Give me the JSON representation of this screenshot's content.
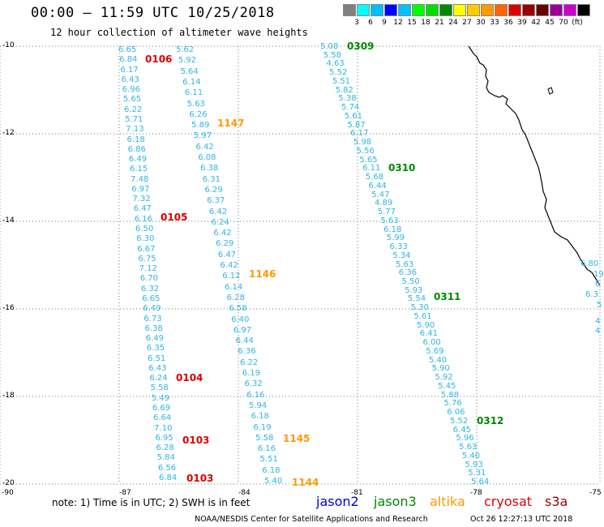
{
  "header": {
    "title": "00:00 – 11:59 UTC 10/25/2018",
    "subtitle": "12 hour collection of altimeter wave heights"
  },
  "colorbar": {
    "colors": [
      "#808080",
      "#00ffff",
      "#00bfff",
      "#0000ff",
      "#00c0ff",
      "#00ff00",
      "#00dd00",
      "#008800",
      "#ffff00",
      "#ffcc00",
      "#ff9900",
      "#ff6600",
      "#dd0000",
      "#990000",
      "#660000",
      "#990099",
      "#cc00cc",
      "#000000"
    ],
    "labels": [
      "3",
      "6",
      "9",
      "12",
      "15",
      "18",
      "21",
      "24",
      "27",
      "30",
      "33",
      "36",
      "39",
      "42",
      "45",
      "70",
      "(ft)"
    ]
  },
  "axes": {
    "y_labels": [
      "-10",
      "-12",
      "-14",
      "-16",
      "-18",
      "-20"
    ],
    "x_labels": [
      "-90",
      "-87",
      "-84",
      "-81",
      "-78",
      "-75"
    ]
  },
  "tracks": {
    "track_a": [
      "6.65",
      "6.84",
      "6.17",
      "6.43",
      "6.96",
      "5.65",
      "6.22",
      "5.71",
      "7.13",
      "6.18",
      "6.86",
      "6.49",
      "6.15",
      "7.48",
      "6.97",
      "7.32",
      "6.47",
      "6.16",
      "6.50",
      "6.30",
      "6.67",
      "6.75",
      "7.12",
      "6.70",
      "6.32",
      "6.65",
      "6.49",
      "6.73",
      "6.38",
      "6.49",
      "6.35",
      "6.51",
      "6.43",
      "6.24",
      "5.58",
      "5.49",
      "6.69",
      "6.64",
      "7.10",
      "6.95",
      "6.28",
      "5.84",
      "6.56",
      "6.84"
    ],
    "track_b": [
      "5.62",
      "5.92",
      "5.64",
      "6.14",
      "6.11",
      "5.63",
      "6.26",
      "5.89",
      "5.97",
      "6.42",
      "6.08",
      "6.38",
      "6.31",
      "6.29",
      "6.37",
      "6.42",
      "6.24",
      "6.42",
      "6.29",
      "6.47",
      "6.42",
      "6.12",
      "6.14",
      "6.28",
      "6.58",
      "6.40",
      "6.97",
      "6.44",
      "6.36",
      "6.22",
      "6.19",
      "6.32",
      "6.16",
      "5.94",
      "6.18",
      "6.19",
      "5.58",
      "6.16",
      "5.51",
      "6.18",
      "5.40"
    ],
    "track_c": [
      "5.08",
      "5.58",
      "4.63",
      "5.52",
      "5.51",
      "5.82",
      "5.38",
      "5.74",
      "5.61",
      "5.87",
      "6.17",
      "5.98",
      "5.56",
      "5.65",
      "6.11",
      "5.68",
      "6.44",
      "5.47",
      "4.89",
      "5.77",
      "5.63",
      "6.18",
      "5.99",
      "6.33",
      "5.34",
      "5.63",
      "6.36",
      "5.50",
      "5.93",
      "5.54",
      "5.30",
      "5.61",
      "5.90",
      "6.41",
      "6.00",
      "5.69",
      "5.40",
      "5.90",
      "5.92",
      "5.45",
      "5.88",
      "5.76",
      "6.06",
      "5.52",
      "6.45",
      "5.96",
      "5.63",
      "5.40",
      "5.93",
      "5.31",
      "5.64"
    ],
    "track_d": [
      "6.80",
      "19",
      "6",
      "6.3",
      "5",
      "4",
      "4"
    ]
  },
  "times": {
    "red": [
      "0106",
      "0105",
      "0104",
      "0103",
      "0103"
    ],
    "orange": [
      "1147",
      "1146",
      "1145",
      "1144"
    ],
    "green": [
      "0309",
      "0310",
      "0311",
      "0312"
    ]
  },
  "footer": {
    "note": "note:  1) Time is in UTC;  2) SWH is in feet",
    "legend": [
      {
        "label": "jason2",
        "color": "#0000cc"
      },
      {
        "label": "jason3",
        "color": "#008800"
      },
      {
        "label": "altika",
        "color": "#ff9900"
      },
      {
        "label": "cryosat",
        "color": "#dd0000"
      },
      {
        "label": "s3a",
        "color": "#990000"
      }
    ],
    "credit": "NOAA/NESDIS Center for Satellite Applications and Research",
    "timestamp": "Oct 26 12:27:13 UTC 2018"
  }
}
